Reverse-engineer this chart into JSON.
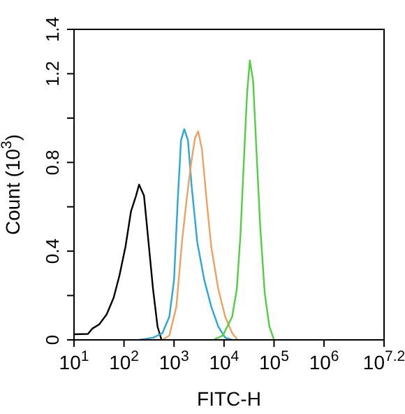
{
  "chart_data": {
    "type": "line",
    "xlabel": "FITC-H",
    "ylabel": "Count (10$^{3}$)",
    "log": "x",
    "grid": false,
    "marker": "none",
    "line_style": "solid",
    "xlim": [
      10,
      15848932
    ],
    "xticks": [
      {
        "value": 10,
        "label": "10$^{1}$"
      },
      {
        "value": 100,
        "label": "10$^{2}$"
      },
      {
        "value": 1000,
        "label": "10$^{3}$"
      },
      {
        "value": 10000,
        "label": "10$^{4}$"
      },
      {
        "value": 100000,
        "label": "10$^{5}$"
      },
      {
        "value": 1000000,
        "label": "10$^{6}$"
      },
      {
        "value": 15848932,
        "label": "10$^{7.2}$"
      }
    ],
    "ylim": [
      0,
      1.4
    ],
    "yticks": [
      0,
      {
        "value": 0.2,
        "label": null
      },
      0.4,
      {
        "value": 0.6,
        "label": null
      },
      0.8,
      {
        "value": 1.0,
        "label": null
      },
      1.2,
      1.4
    ],
    "series": [
      {
        "color": "#000000",
        "x": [
          10,
          19,
          23,
          32,
          45,
          62,
          81,
          107,
          138,
          174,
          200,
          251,
          309,
          380,
          468,
          562
        ],
        "values": [
          0.025,
          0.027,
          0.05,
          0.07,
          0.115,
          0.19,
          0.29,
          0.42,
          0.58,
          0.65,
          0.7,
          0.65,
          0.44,
          0.23,
          0.06,
          0
        ]
      },
      {
        "color": "#29a8d8",
        "x": [
          200,
          381,
          585,
          807,
          1000,
          1187,
          1380,
          1604,
          1902,
          2255,
          2917,
          4026,
          5550,
          7660,
          10550,
          14560
        ],
        "values": [
          0,
          0.01,
          0.03,
          0.105,
          0.27,
          0.63,
          0.9,
          0.95,
          0.9,
          0.69,
          0.44,
          0.27,
          0.15,
          0.06,
          0.01,
          0
        ]
      },
      {
        "color": "#f0a060",
        "x": [
          585,
          807,
          1114,
          1440,
          1782,
          2208,
          2624,
          3048,
          3614,
          4479,
          5550,
          7660,
          10550,
          14560,
          18800
        ],
        "values": [
          0,
          0.02,
          0.15,
          0.44,
          0.63,
          0.8,
          0.91,
          0.94,
          0.86,
          0.63,
          0.42,
          0.23,
          0.105,
          0.03,
          0
        ]
      },
      {
        "color": "#50d040",
        "x": [
          6180,
          9480,
          14560,
          18030,
          21380,
          24850,
          28860,
          32810,
          38120,
          44360,
          52630,
          65160,
          80750,
          100000
        ],
        "values": [
          0,
          0.02,
          0.105,
          0.23,
          0.48,
          0.8,
          1.11,
          1.26,
          1.17,
          0.86,
          0.52,
          0.21,
          0.06,
          0
        ]
      }
    ]
  }
}
